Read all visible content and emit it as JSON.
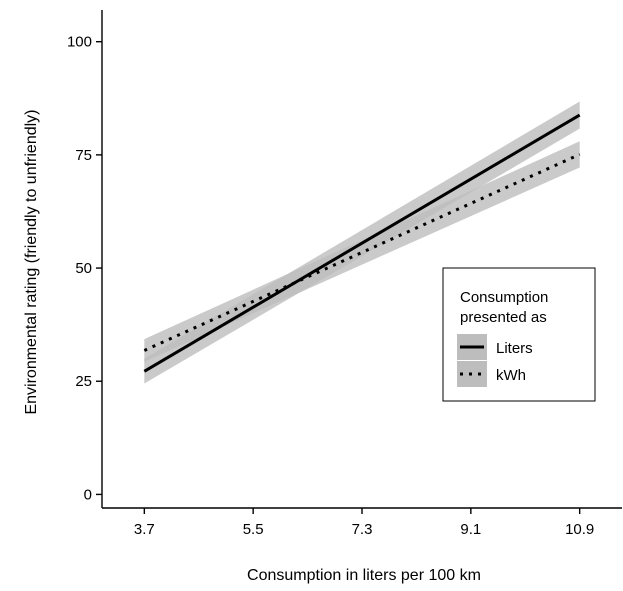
{
  "chart_data": {
    "type": "line",
    "xlabel": "Consumption in liters per 100 km",
    "ylabel": "Environmental rating (friendly to unfriendly)",
    "x_ticks": [
      "3.7",
      "5.5",
      "7.3",
      "9.1",
      "10.9"
    ],
    "y_ticks": [
      "0",
      "25",
      "50",
      "75",
      "100"
    ],
    "xlim": [
      3.0,
      11.6
    ],
    "ylim": [
      -3,
      107
    ],
    "grid": false,
    "legend": {
      "title_lines": [
        "Consumption",
        "presented as"
      ],
      "position": "right",
      "entries": [
        "Liters",
        "kWh"
      ]
    },
    "series": [
      {
        "name": "Liters",
        "style": "solid",
        "x": [
          3.7,
          10.9
        ],
        "y": [
          27.2,
          83.8
        ],
        "ci_lower": [
          24.5,
          80.8
        ],
        "ci_upper": [
          30.0,
          86.8
        ]
      },
      {
        "name": "kWh",
        "style": "dotted",
        "x": [
          3.7,
          10.9
        ],
        "y": [
          31.8,
          75.1
        ],
        "ci_lower": [
          29.3,
          72.2
        ],
        "ci_upper": [
          34.3,
          78.0
        ]
      }
    ],
    "colors": {
      "line": "#000000",
      "ribbon": "#bdbdbd"
    }
  }
}
